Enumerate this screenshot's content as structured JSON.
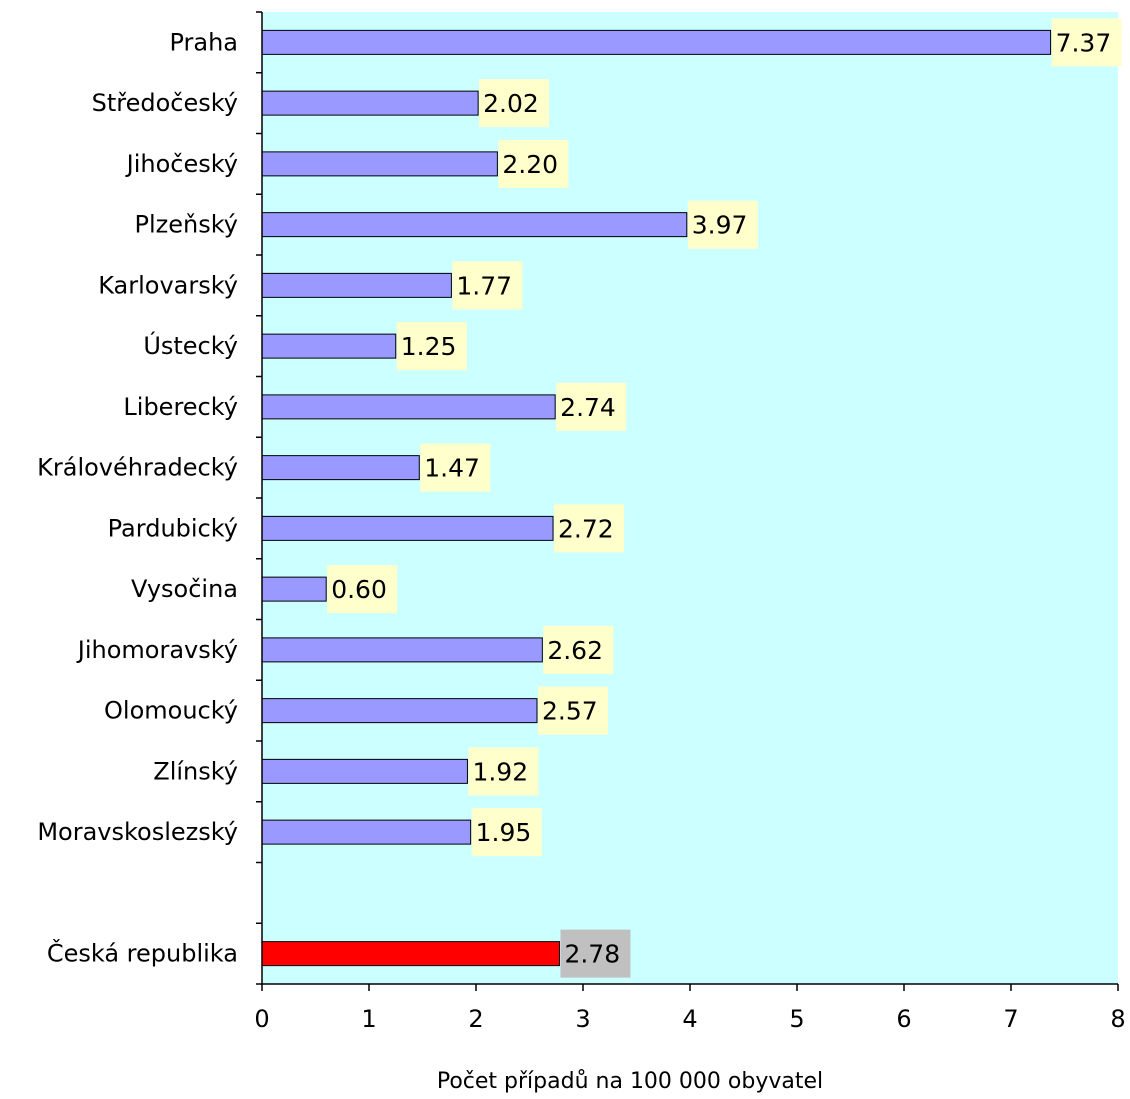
{
  "chart_data": {
    "type": "bar",
    "orientation": "horizontal",
    "categories": [
      "Praha",
      "Středočeský",
      "Jihočeský",
      "Plzeňský",
      "Karlovarský",
      "Ústecký",
      "Liberecký",
      "Královéhradecký",
      "Pardubický",
      "Vysočina",
      "Jihomoravský",
      "Olomoucký",
      "Zlínský",
      "Moravskoslezský",
      "",
      "Česká republika"
    ],
    "values": [
      7.37,
      2.02,
      2.2,
      3.97,
      1.77,
      1.25,
      2.74,
      1.47,
      2.72,
      0.6,
      2.62,
      2.57,
      1.92,
      1.95,
      null,
      2.78
    ],
    "value_labels": [
      "7.37",
      "2.02",
      "2.20",
      "3.97",
      "1.77",
      "1.25",
      "2.74",
      "1.47",
      "2.72",
      "0.60",
      "2.62",
      "2.57",
      "1.92",
      "1.95",
      "",
      "2.78"
    ],
    "highlight_category": "Česká republika",
    "xlabel": "Počet případů na 100 000 obyvatel",
    "ylabel": "",
    "xlim": [
      0,
      8
    ],
    "xticks": [
      "0",
      "1",
      "2",
      "3",
      "4",
      "5",
      "6",
      "7",
      "8"
    ],
    "grid": false,
    "legend": "none",
    "colors": {
      "plot_background": "#ccffff",
      "bar": "#9999ff",
      "bar_highlight": "#ff0000",
      "label_background": "#ffffcc",
      "label_background_highlight": "#c0c0c0",
      "axis": "#000000"
    }
  }
}
